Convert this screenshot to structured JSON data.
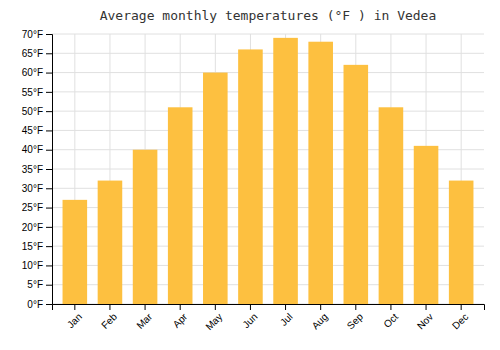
{
  "chart_data": {
    "type": "bar",
    "title": "Average monthly temperatures (°F ) in Vedea",
    "categories": [
      "Jan",
      "Feb",
      "Mar",
      "Apr",
      "May",
      "Jun",
      "Jul",
      "Aug",
      "Sep",
      "Oct",
      "Nov",
      "Dec"
    ],
    "values": [
      27,
      32,
      40,
      51,
      60,
      66,
      69,
      68,
      62,
      51,
      41,
      32
    ],
    "color": "#FDC040",
    "ylim": [
      0,
      70
    ],
    "yticks": [
      {
        "value": 0,
        "label": "0°F"
      },
      {
        "value": 5,
        "label": "5°F"
      },
      {
        "value": 10,
        "label": "10°F"
      },
      {
        "value": 15,
        "label": "15°F"
      },
      {
        "value": 20,
        "label": "20°F"
      },
      {
        "value": 25,
        "label": "25°F"
      },
      {
        "value": 30,
        "label": "30°F"
      },
      {
        "value": 35,
        "label": "35°F"
      },
      {
        "value": 40,
        "label": "40°F"
      },
      {
        "value": 45,
        "label": "45°F"
      },
      {
        "value": 50,
        "label": "50°F"
      },
      {
        "value": 55,
        "label": "55°F"
      },
      {
        "value": 60,
        "label": "60°F"
      },
      {
        "value": 65,
        "label": "65°F"
      },
      {
        "value": 70,
        "label": "70°F"
      }
    ],
    "grid": true
  }
}
